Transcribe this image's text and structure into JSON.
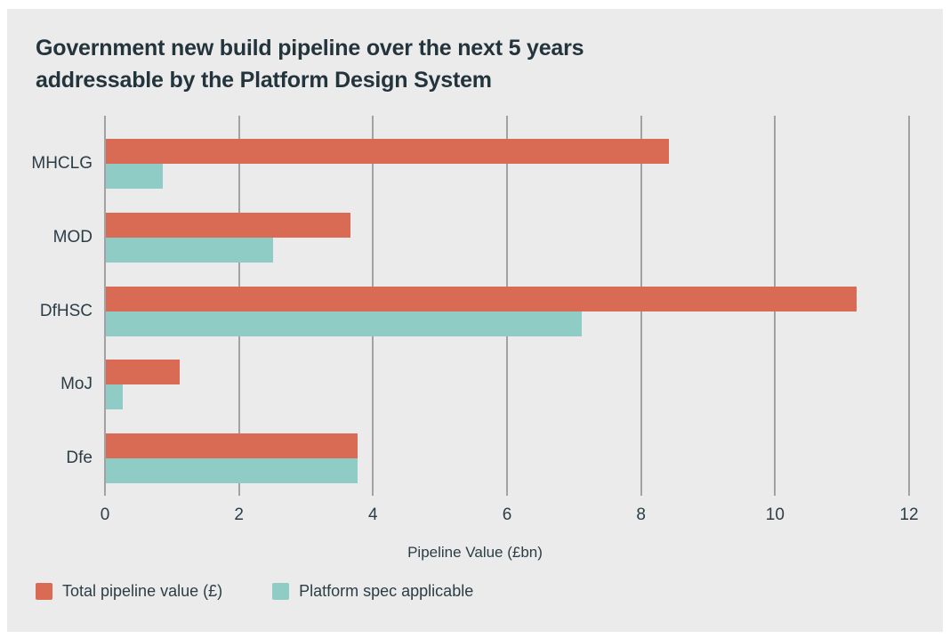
{
  "colors": {
    "page_background": "#ffffff",
    "card_background": "#ebebeb",
    "text_dark": "#24343c",
    "text_label": "#2c3d46",
    "gridline": "#a2a2a2",
    "series_total": "#d96b54",
    "series_platform": "#8fccc6"
  },
  "chart_data": {
    "type": "bar",
    "orientation": "horizontal",
    "title": "Government new build pipeline over the next 5 years addressable by the Platform Design System",
    "title_lines": [
      "Government new build pipeline over the next 5 years",
      "addressable by the Platform Design System"
    ],
    "categories": [
      "MHCLG",
      "MOD",
      "DfHSC",
      "MoJ",
      "Dfe"
    ],
    "series": [
      {
        "name": "Total pipeline value (£)",
        "color": "#d96b54",
        "values": [
          8.4,
          3.65,
          11.2,
          1.1,
          3.75
        ]
      },
      {
        "name": "Platform spec applicable",
        "color": "#8fccc6",
        "values": [
          0.85,
          2.5,
          7.1,
          0.25,
          3.75
        ]
      }
    ],
    "xlabel": "Pipeline Value (£bn)",
    "xticks": [
      0,
      2,
      4,
      6,
      8,
      10,
      12
    ],
    "xlim": [
      0,
      12
    ],
    "grid": "vertical",
    "legend_position": "bottom-left"
  }
}
